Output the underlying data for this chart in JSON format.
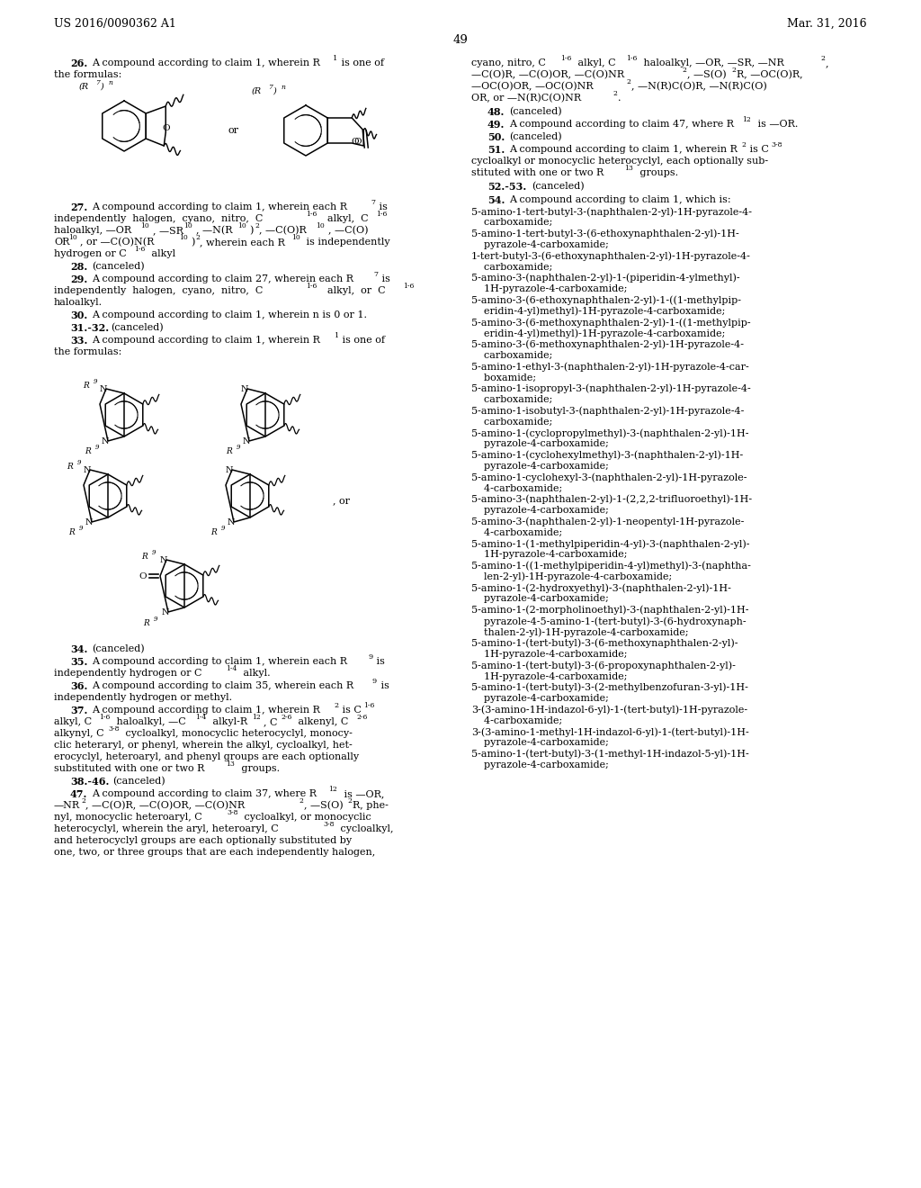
{
  "background_color": "#ffffff",
  "header_left": "US 2016/0090362 A1",
  "header_right": "Mar. 31, 2016",
  "page_number": "49"
}
